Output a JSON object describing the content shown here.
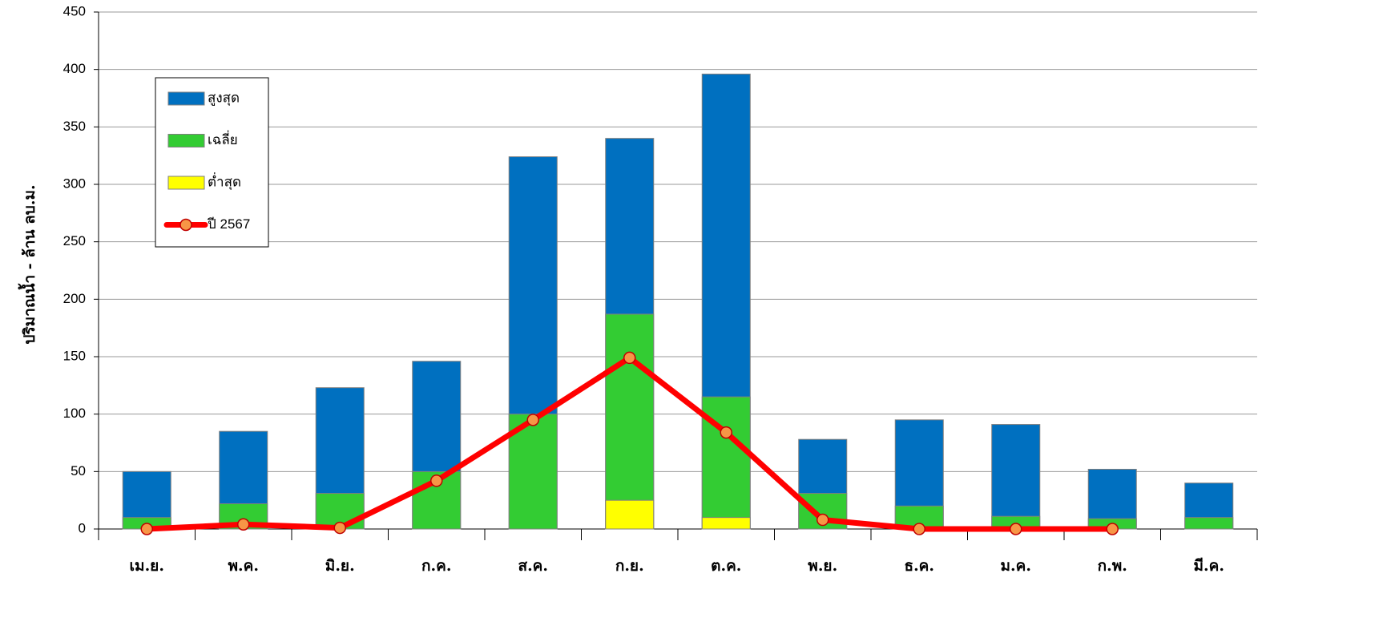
{
  "chart_data": {
    "type": "bar",
    "y_label": "ปริมาณน้ำ - ล้าน ลบ.ม.",
    "categories": [
      "เม.ย.",
      "พ.ค.",
      "มิ.ย.",
      "ก.ค.",
      "ส.ค.",
      "ก.ย.",
      "ต.ค.",
      "พ.ย.",
      "ธ.ค.",
      "ม.ค.",
      "ก.พ.",
      "มี.ค."
    ],
    "series": [
      {
        "name": "สูงสุด",
        "color": "#0070c0",
        "values": [
          50,
          85,
          123,
          146,
          324,
          340,
          396,
          78,
          95,
          91,
          52,
          40
        ]
      },
      {
        "name": "เฉลี่ย",
        "color": "#33cc33",
        "values": [
          10,
          22,
          31,
          50,
          100,
          187,
          115,
          31,
          20,
          11,
          9,
          10
        ]
      },
      {
        "name": "ต่ำสุด",
        "color": "#ffff00",
        "values": [
          0,
          0,
          0,
          0,
          0,
          25,
          10,
          0,
          0,
          0,
          0,
          0
        ]
      },
      {
        "name": "ปี 2567",
        "type": "line",
        "color": "#ff0000",
        "marker_color": "#f79646",
        "values": [
          0,
          4,
          1,
          42,
          95,
          149,
          84,
          8,
          0,
          0,
          0,
          null
        ]
      }
    ],
    "ylim": [
      0,
      450
    ],
    "yticks": [
      0,
      50,
      100,
      150,
      200,
      250,
      300,
      350,
      400,
      450
    ],
    "grid": true,
    "legend": "upper left"
  }
}
